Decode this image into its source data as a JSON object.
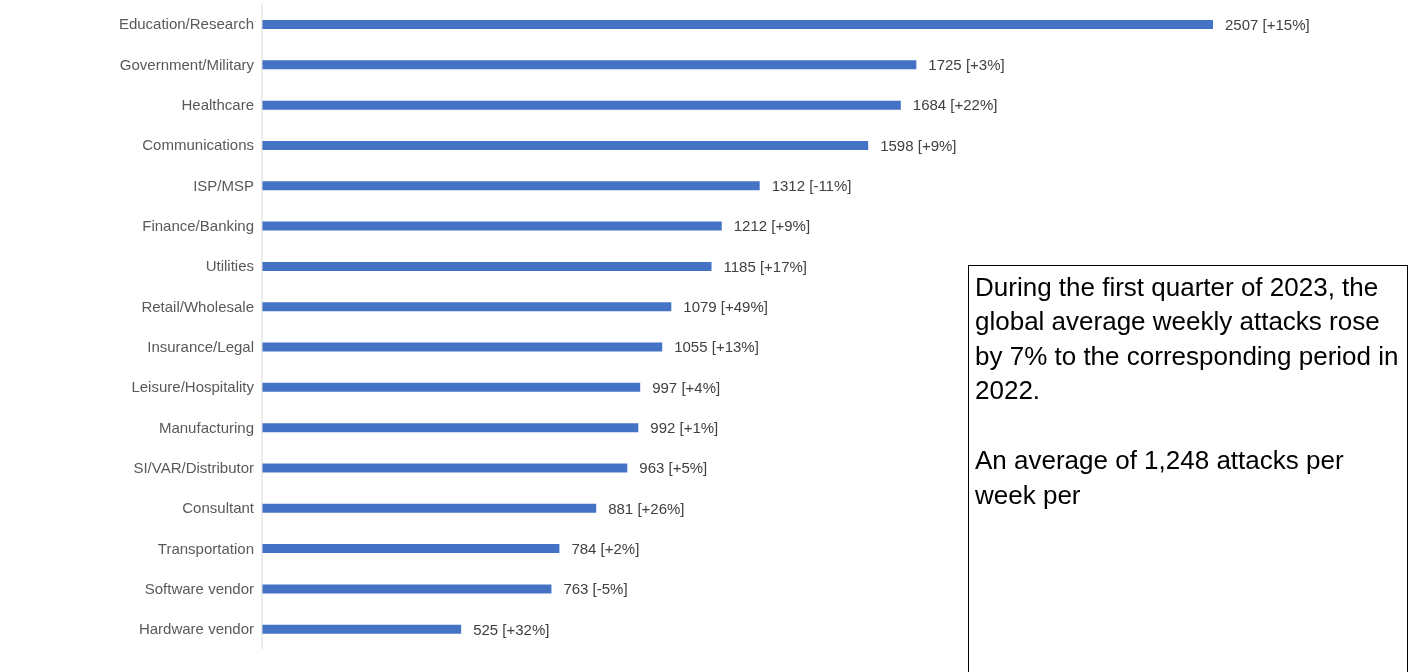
{
  "chart_data": {
    "type": "bar",
    "orientation": "horizontal",
    "categories": [
      "Education/Research",
      "Government/Military",
      "Healthcare",
      "Communications",
      "ISP/MSP",
      "Finance/Banking",
      "Utilities",
      "Retail/Wholesale",
      "Insurance/Legal",
      "Leisure/Hospitality",
      "Manufacturing",
      "SI/VAR/Distributor",
      "Consultant",
      "Transportation",
      "Software vendor",
      "Hardware vendor"
    ],
    "values": [
      2507,
      1725,
      1684,
      1598,
      1312,
      1212,
      1185,
      1079,
      1055,
      997,
      992,
      963,
      881,
      784,
      763,
      525
    ],
    "value_labels": [
      "2507 [+15%]",
      "1725 [+3%]",
      "1684 [+22%]",
      "1598 [+9%]",
      "1312 [-11%]",
      "1212 [+9%]",
      "1185 [+17%]",
      "1079 [+49%]",
      "1055 [+13%]",
      "997 [+4%]",
      "992 [+1%]",
      "963 [+5%]",
      "881 [+26%]",
      "784 [+2%]",
      "763 [-5%]",
      "525 [+32%]"
    ],
    "color": "#4472c4",
    "annotations": [
      "During the first quarter of 2023, the global average weekly attacks rose by 7% to the corresponding period in 2022.",
      "An average of 1,248 attacks per week per"
    ]
  }
}
